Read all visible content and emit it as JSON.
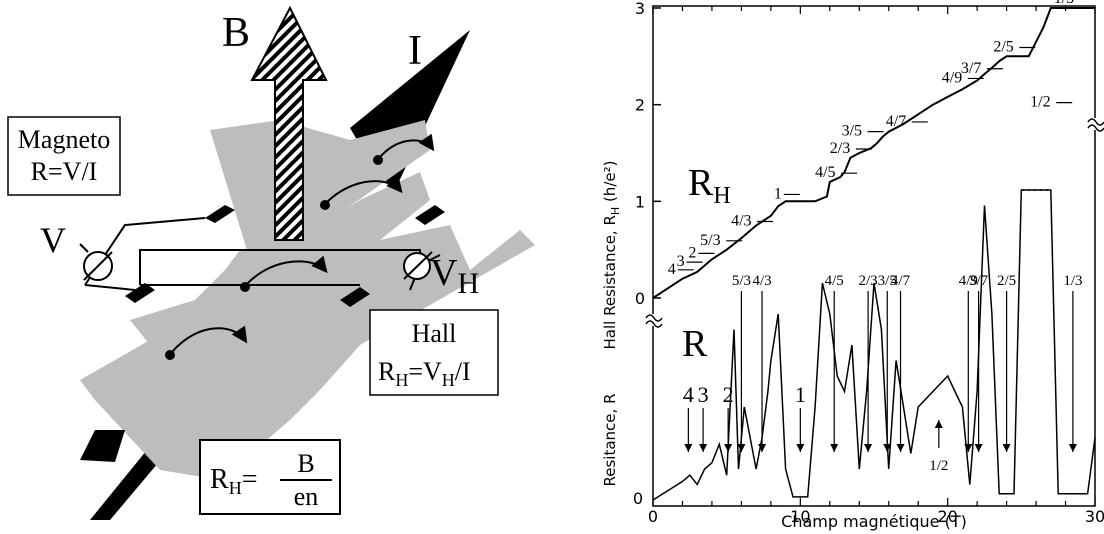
{
  "colors": {
    "sheet": "#bdbdbd",
    "ink": "#000000",
    "paper": "#ffffff"
  },
  "icons": [
    "field-arrow-icon",
    "current-arrow-icon",
    "voltmeter-icon",
    "electron-path-icon"
  ],
  "schematic": {
    "b_label": "B",
    "i_label": "I",
    "v_label": "V",
    "vh_label": "V",
    "vh_sub": "H",
    "magneto_box": {
      "line1": "Magneto",
      "line2": "R=V/I"
    },
    "hall_box": {
      "line1": "Hall",
      "r": "R",
      "r_sub": "H",
      "eq": "=V",
      "v_sub": "H",
      "tail": "/I"
    },
    "formula": {
      "r": "R",
      "r_sub": "H",
      "eq": "=",
      "num": "B",
      "den": "en"
    }
  },
  "chart_data": {
    "type": "line",
    "xlabel": "Champ magnétique (T)",
    "x_ticks": [
      0,
      10,
      20,
      30
    ],
    "xlim": [
      0,
      30
    ],
    "hall": {
      "ylabel": "Hall Resistance, R",
      "ylabel_sub": "H",
      "ylabel_unit": " (h/e²)",
      "ylim": [
        0,
        3
      ],
      "y_ticks": [
        0,
        1,
        2,
        3
      ],
      "curve_label": "R",
      "curve_label_sub": "H",
      "points": [
        [
          0,
          0
        ],
        [
          2,
          0.2
        ],
        [
          3,
          0.27
        ],
        [
          4,
          0.4
        ],
        [
          5,
          0.5
        ],
        [
          6,
          0.62
        ],
        [
          7,
          0.75
        ],
        [
          8,
          0.85
        ],
        [
          8.5,
          0.95
        ],
        [
          9,
          1
        ],
        [
          11,
          1
        ],
        [
          11.8,
          1.05
        ],
        [
          12,
          1.2
        ],
        [
          12.7,
          1.25
        ],
        [
          13,
          1.3
        ],
        [
          13.4,
          1.45
        ],
        [
          14,
          1.5
        ],
        [
          14.8,
          1.55
        ],
        [
          15.2,
          1.6
        ],
        [
          15.6,
          1.67
        ],
        [
          16,
          1.72
        ],
        [
          17,
          1.8
        ],
        [
          18,
          1.9
        ],
        [
          19,
          2
        ],
        [
          20,
          2.08
        ],
        [
          21,
          2.16
        ],
        [
          22,
          2.25
        ],
        [
          22.6,
          2.33
        ],
        [
          23,
          2.38
        ],
        [
          23.5,
          2.45
        ],
        [
          24,
          2.5
        ],
        [
          25.5,
          2.5
        ],
        [
          26.5,
          2.8
        ],
        [
          27,
          3
        ],
        [
          30,
          3
        ]
      ],
      "plateau_labels": [
        {
          "text": "4",
          "x": 1.0,
          "y": 0.25
        },
        {
          "text": "3",
          "x": 1.6,
          "y": 0.33
        },
        {
          "text": "2",
          "x": 2.4,
          "y": 0.42
        },
        {
          "text": "5/3",
          "x": 3.2,
          "y": 0.55
        },
        {
          "text": "4/3",
          "x": 5.3,
          "y": 0.75
        },
        {
          "text": "1",
          "x": 8.2,
          "y": 1.03
        },
        {
          "text": "4/5",
          "x": 11.0,
          "y": 1.25
        },
        {
          "text": "2/3",
          "x": 12.0,
          "y": 1.5
        },
        {
          "text": "3/5",
          "x": 12.8,
          "y": 1.68
        },
        {
          "text": "4/7",
          "x": 15.8,
          "y": 1.78
        },
        {
          "text": "4/9",
          "x": 19.6,
          "y": 2.23
        },
        {
          "text": "3/7",
          "x": 20.9,
          "y": 2.33
        },
        {
          "text": "2/5",
          "x": 23.1,
          "y": 2.55
        },
        {
          "text": "1/2",
          "x": 25.6,
          "y": 1.98
        },
        {
          "text": "1/3",
          "x": 27.2,
          "y": 3.05
        }
      ]
    },
    "resistance": {
      "ylabel": "Resitance, R",
      "curve_label": "R",
      "points": [
        [
          0,
          0
        ],
        [
          1,
          0.03
        ],
        [
          2,
          0.06
        ],
        [
          2.5,
          0.08
        ],
        [
          3,
          0.05
        ],
        [
          3.5,
          0.1
        ],
        [
          4,
          0.12
        ],
        [
          4.5,
          0.18
        ],
        [
          5,
          0.08
        ],
        [
          5.5,
          0.55
        ],
        [
          5.8,
          0.1
        ],
        [
          6.2,
          0.3
        ],
        [
          6.6,
          0.2
        ],
        [
          7,
          0.1
        ],
        [
          7.4,
          0.2
        ],
        [
          7.8,
          0.35
        ],
        [
          8,
          0.45
        ],
        [
          8.5,
          0.6
        ],
        [
          9,
          0.1
        ],
        [
          9.5,
          0.01
        ],
        [
          10.5,
          0.01
        ],
        [
          11,
          0.3
        ],
        [
          11.5,
          0.7
        ],
        [
          12,
          0.6
        ],
        [
          12.5,
          0.4
        ],
        [
          13,
          0.35
        ],
        [
          13.5,
          0.5
        ],
        [
          14,
          0.1
        ],
        [
          14.5,
          0.35
        ],
        [
          15,
          0.7
        ],
        [
          15.5,
          0.55
        ],
        [
          16,
          0.1
        ],
        [
          16.5,
          0.45
        ],
        [
          17,
          0.3
        ],
        [
          17.5,
          0.15
        ],
        [
          18,
          0.3
        ],
        [
          19,
          0.35
        ],
        [
          20,
          0.4
        ],
        [
          20.5,
          0.35
        ],
        [
          21,
          0.3
        ],
        [
          21.5,
          0.05
        ],
        [
          22,
          0.35
        ],
        [
          22.5,
          0.95
        ],
        [
          23,
          0.6
        ],
        [
          23.5,
          0.02
        ],
        [
          24.5,
          0.02
        ],
        [
          25,
          1
        ],
        [
          27,
          1
        ],
        [
          27.5,
          0.02
        ],
        [
          29.5,
          0.02
        ],
        [
          30,
          0.2
        ]
      ],
      "arrow_labels": [
        {
          "text": "4",
          "x": 2.4
        },
        {
          "text": "3",
          "x": 3.4
        },
        {
          "text": "2",
          "x": 5.1
        },
        {
          "text": "5/3",
          "x": 6.0
        },
        {
          "text": "4/3",
          "x": 7.4
        },
        {
          "text": "1",
          "x": 10.0
        },
        {
          "text": "4/5",
          "x": 12.3
        },
        {
          "text": "2/3",
          "x": 14.6
        },
        {
          "text": "3/5",
          "x": 15.9
        },
        {
          "text": "4/7",
          "x": 16.8
        },
        {
          "text": "4/9",
          "x": 21.4
        },
        {
          "text": "3/7",
          "x": 22.1
        },
        {
          "text": "2/5",
          "x": 24.0
        },
        {
          "text": "1/3",
          "x": 28.5
        },
        {
          "text": "1/2",
          "x": 19.4
        }
      ]
    }
  }
}
